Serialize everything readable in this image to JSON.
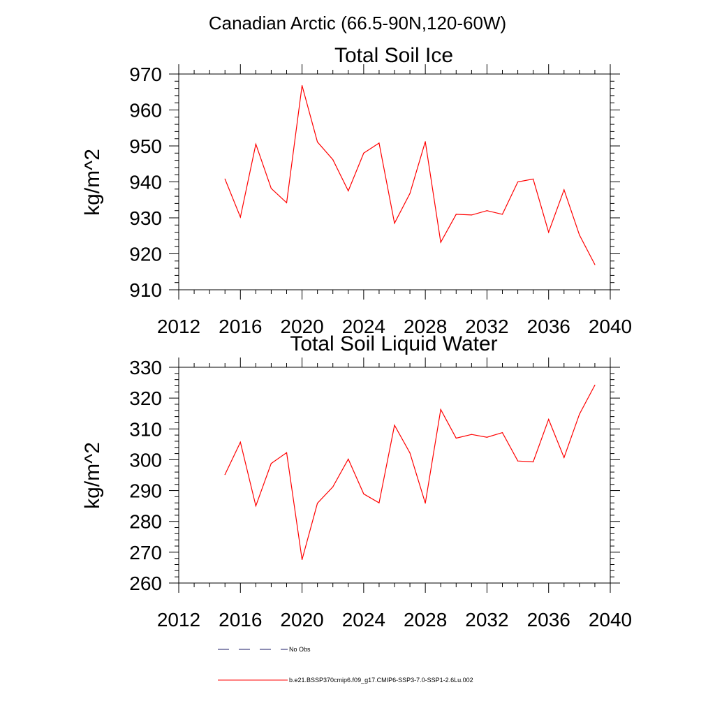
{
  "figure": {
    "title": "Canadian Arctic (66.5-90N,120-60W)"
  },
  "chart_data": [
    {
      "type": "line",
      "title": "Total Soil Ice",
      "xlabel": "",
      "ylabel": "kg/m^2",
      "xlim": [
        2012,
        2040
      ],
      "ylim": [
        910,
        970
      ],
      "xticks": [
        "2012",
        "2016",
        "2020",
        "2024",
        "2028",
        "2032",
        "2036",
        "2040"
      ],
      "yticks": [
        "910",
        "920",
        "930",
        "940",
        "950",
        "960",
        "970"
      ],
      "grid": false,
      "series": [
        {
          "name": "b.e21.BSSP370cmip6.f09_g17.CMIP6-SSP3-7.0-SSP1-2.6Lu.002",
          "color": "#ff0000",
          "x": [
            2015,
            2016,
            2017,
            2018,
            2019,
            2020,
            2021,
            2022,
            2023,
            2024,
            2025,
            2026,
            2027,
            2028,
            2029,
            2030,
            2031,
            2032,
            2033,
            2034,
            2035,
            2036,
            2037,
            2038,
            2039
          ],
          "values": [
            940.8,
            930.2,
            950.5,
            938.2,
            934.2,
            966.8,
            951.1,
            946.2,
            937.5,
            948.0,
            950.8,
            928.5,
            936.8,
            951.2,
            923.2,
            931.0,
            930.8,
            932.0,
            931.0,
            940.0,
            940.8,
            926.0,
            937.8,
            925.2,
            917.0
          ]
        }
      ]
    },
    {
      "type": "line",
      "title": "Total Soil Liquid Water",
      "xlabel": "",
      "ylabel": "kg/m^2",
      "xlim": [
        2012,
        2040
      ],
      "ylim": [
        260,
        330
      ],
      "xticks": [
        "2012",
        "2016",
        "2020",
        "2024",
        "2028",
        "2032",
        "2036",
        "2040"
      ],
      "yticks": [
        "260",
        "270",
        "280",
        "290",
        "300",
        "310",
        "320",
        "330"
      ],
      "grid": false,
      "series": [
        {
          "name": "b.e21.BSSP370cmip6.f09_g17.CMIP6-SSP3-7.0-SSP1-2.6Lu.002",
          "color": "#ff0000",
          "x": [
            2015,
            2016,
            2017,
            2018,
            2019,
            2020,
            2021,
            2022,
            2023,
            2024,
            2025,
            2026,
            2027,
            2028,
            2029,
            2030,
            2031,
            2032,
            2033,
            2034,
            2035,
            2036,
            2037,
            2038,
            2039
          ],
          "values": [
            295.2,
            305.7,
            285.0,
            298.8,
            302.3,
            267.6,
            285.9,
            291.2,
            300.2,
            288.9,
            286.0,
            311.2,
            302.2,
            285.9,
            316.3,
            307.0,
            308.2,
            307.3,
            308.8,
            299.6,
            299.3,
            313.1,
            300.7,
            314.8,
            324.2
          ]
        }
      ]
    }
  ],
  "legend": {
    "placement": "bottom",
    "entries": [
      {
        "label": "No Obs",
        "style": "dashed",
        "color": "#1a1a66"
      },
      {
        "label": "b.e21.BSSP370cmip6.f09_g17.CMIP6-SSP3-7.0-SSP1-2.6Lu.002",
        "style": "solid",
        "color": "#ff0000"
      }
    ]
  }
}
